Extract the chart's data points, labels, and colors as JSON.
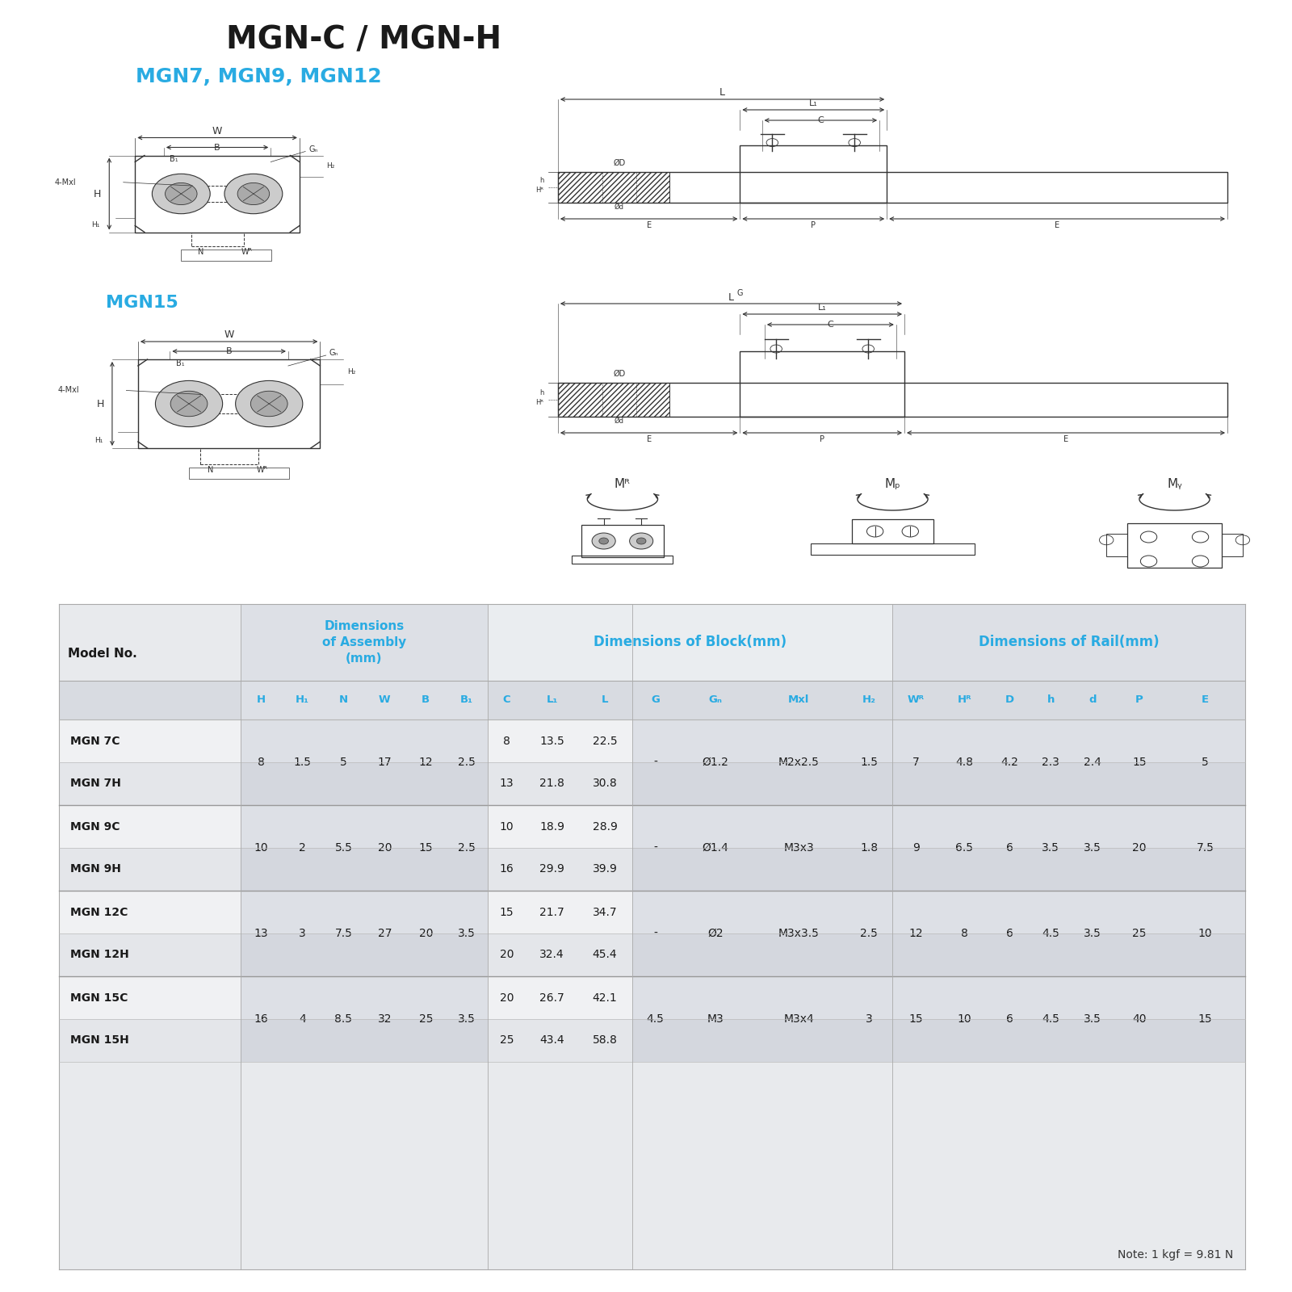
{
  "title": "MGN-C / MGN-H",
  "subtitle": "MGN7, MGN9, MGN12",
  "subtitle2": "MGN15",
  "title_color": "#1a1a1a",
  "subtitle_color": "#29abe2",
  "bg_color": "#ffffff",
  "note": "Note: 1 kgf = 9.81 N",
  "col_names": [
    "H",
    "H₁",
    "N",
    "W",
    "B",
    "B₁",
    "C",
    "L₁",
    "L",
    "G",
    "Gₙ",
    "Mxl",
    "H₂",
    "Wᴿ",
    "Hᴿ",
    "D",
    "h",
    "d",
    "P",
    "E"
  ],
  "model_names": [
    "MGN 7C",
    "MGN 7H",
    "MGN 9C",
    "MGN 9H",
    "MGN 12C",
    "MGN 12H",
    "MGN 15C",
    "MGN 15H"
  ],
  "shared_data": [
    {
      "H": "8",
      "H1": "1.5",
      "N": "5",
      "W": "17",
      "B": "12",
      "B1": "2.5",
      "G": "-",
      "Gn": "Ø1.2",
      "Mxl": "M2x2.5",
      "H2": "1.5",
      "WR": "7",
      "HR": "4.8",
      "D": "4.2",
      "h": "2.3",
      "d": "2.4",
      "P": "15",
      "E": "5"
    },
    {
      "H": "10",
      "H1": "2",
      "N": "5.5",
      "W": "20",
      "B": "15",
      "B1": "2.5",
      "G": "-",
      "Gn": "Ø1.4",
      "Mxl": "M3x3",
      "H2": "1.8",
      "WR": "9",
      "HR": "6.5",
      "D": "6",
      "h": "3.5",
      "d": "3.5",
      "P": "20",
      "E": "7.5"
    },
    {
      "H": "13",
      "H1": "3",
      "N": "7.5",
      "W": "27",
      "B": "20",
      "B1": "3.5",
      "G": "-",
      "Gn": "Ø2",
      "Mxl": "M3x3.5",
      "H2": "2.5",
      "WR": "12",
      "HR": "8",
      "D": "6",
      "h": "4.5",
      "d": "3.5",
      "P": "25",
      "E": "10"
    },
    {
      "H": "16",
      "H1": "4",
      "N": "8.5",
      "W": "32",
      "B": "25",
      "B1": "3.5",
      "G": "4.5",
      "Gn": "M3",
      "Mxl": "M3x4",
      "H2": "3",
      "WR": "15",
      "HR": "10",
      "D": "6",
      "h": "4.5",
      "d": "3.5",
      "P": "40",
      "E": "15"
    }
  ],
  "c_vals": [
    "8",
    "13",
    "10",
    "16",
    "15",
    "20",
    "20",
    "25"
  ],
  "l1_vals": [
    "13.5",
    "21.8",
    "18.9",
    "29.9",
    "21.7",
    "32.4",
    "26.7",
    "43.4"
  ],
  "l_vals": [
    "22.5",
    "30.8",
    "28.9",
    "39.9",
    "34.7",
    "45.4",
    "42.1",
    "58.8"
  ]
}
